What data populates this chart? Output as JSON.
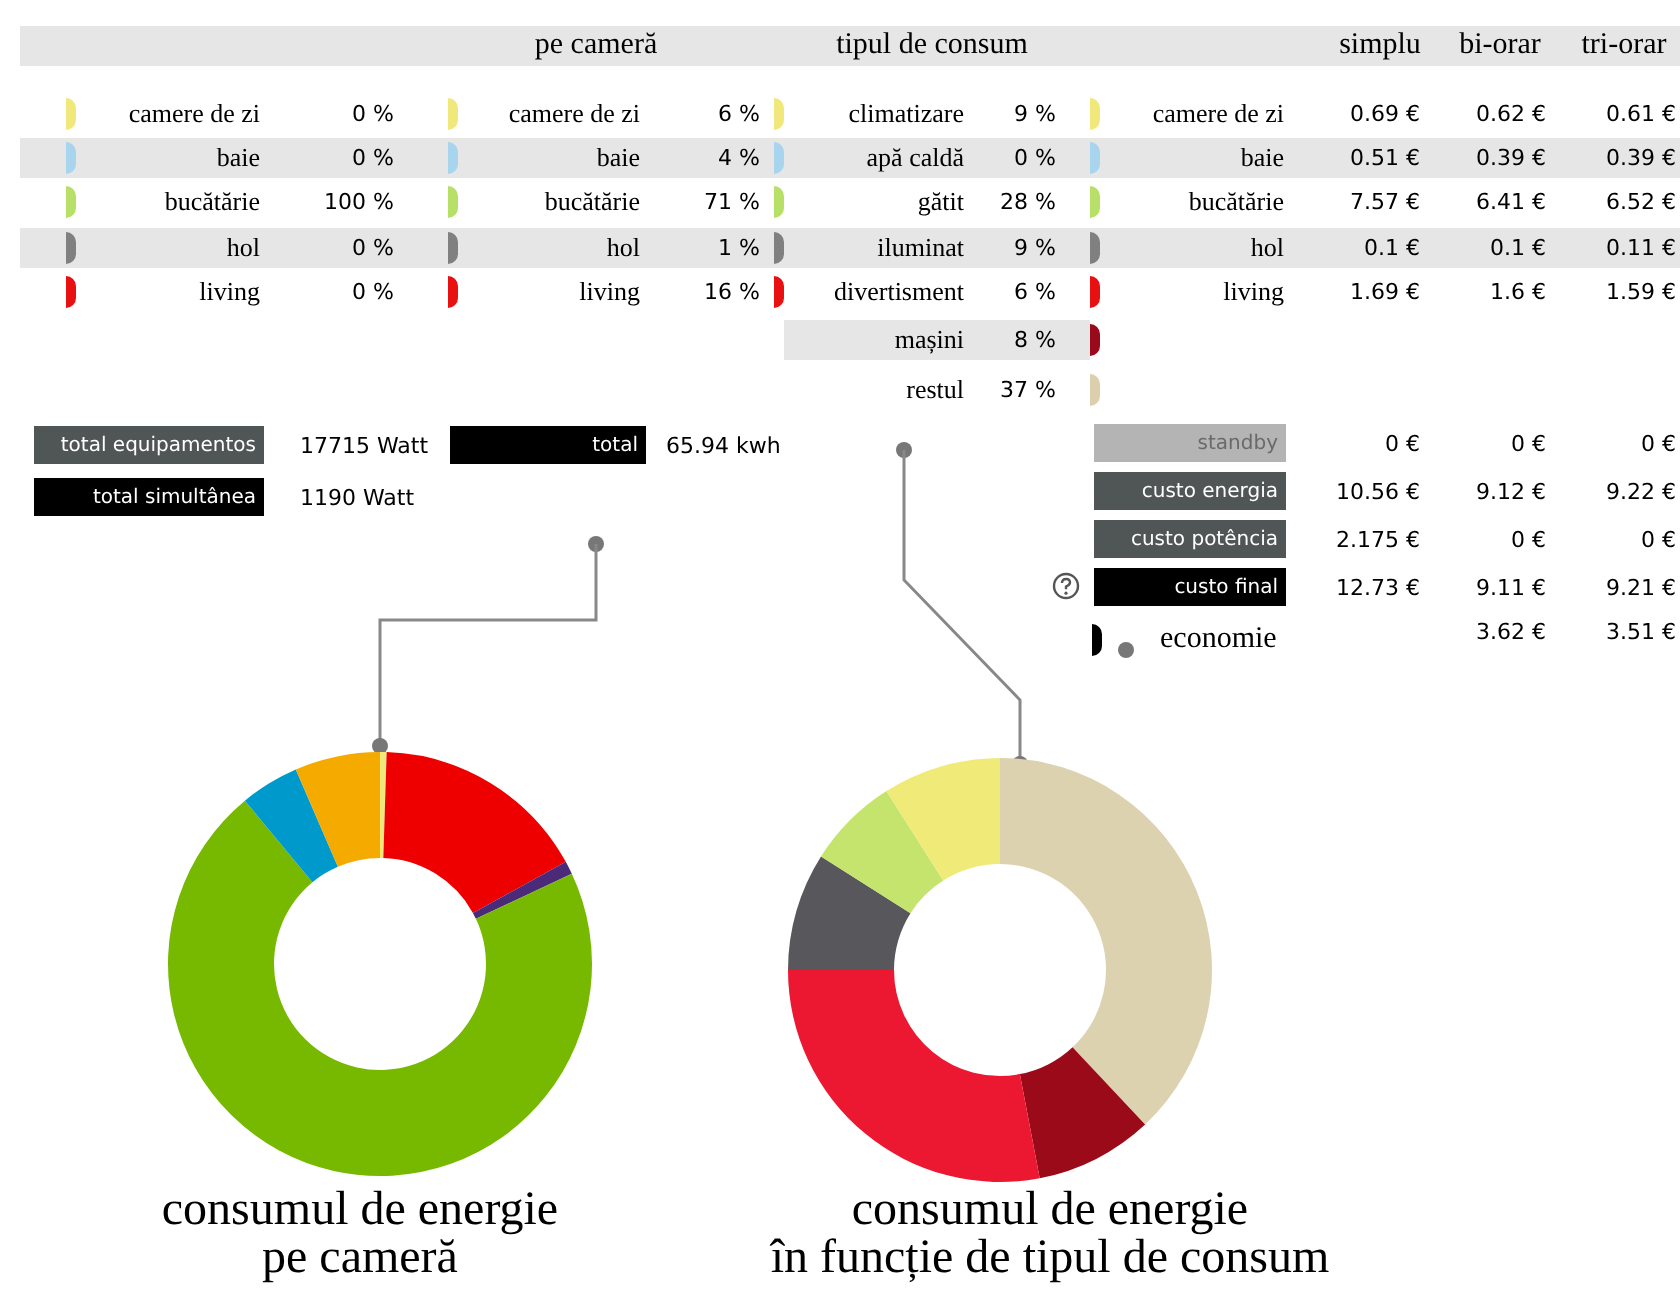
{
  "chart_data": [
    {
      "type": "other",
      "annotations": [
        "pe cameră",
        "tipul de consum",
        "simplu",
        "bi-orar",
        "tri-orar",
        "camere de zi",
        "0 %",
        "baie",
        "0 %",
        "bucătărie",
        "100 %",
        "hol",
        "0 %",
        "living",
        "0 %",
        "camere de zi",
        "6 %",
        "baie",
        "4 %",
        "bucătărie",
        "71 %",
        "hol",
        "1 %",
        "living",
        "16 %",
        "climatizare",
        "9 %",
        "apă caldă",
        "0 %",
        "gătit",
        "28 %",
        "iluminat",
        "9 %",
        "divertisment",
        "6 %",
        "mașini",
        "8 %",
        "restul",
        "37 %",
        "camere de zi",
        "0.69 €",
        "0.62 €",
        "0.61 €",
        "baie",
        "0.51 €",
        "0.39 €",
        "0.39 €",
        "bucătărie",
        "7.57 €",
        "6.41 €",
        "6.52 €",
        "hol",
        "0.1 €",
        "0.1 €",
        "0.11 €",
        "living",
        "1.69 €",
        "1.6 €",
        "1.59 €",
        "total equipamentos",
        "17715 Watt",
        "total simultânea",
        "1190 Watt",
        "total",
        "65.94 kwh",
        "standby",
        "0 €",
        "0 €",
        "0 €",
        "custo energia",
        "10.56 €",
        "9.12 €",
        "9.22 €",
        "custo potência",
        "2.175 €",
        "0 €",
        "0 €",
        "custo final",
        "12.73 €",
        "9.11 €",
        "9.21 €",
        "economie",
        "3.62 €",
        "3.51 €"
      ]
    },
    {
      "type": "donut",
      "title": "consumul de energie\npe cameră",
      "categories": [
        null,
        null,
        null,
        null,
        null,
        null
      ],
      "values": [
        0.5,
        16.5,
        1,
        71,
        4.5,
        6.5
      ],
      "colors": [
        "#f0e878",
        "#ee0000",
        "#4b2a7a",
        "#76b900",
        "#0099cc",
        "#f5aa00"
      ]
    },
    {
      "type": "donut",
      "title": "consumul de energie\nîn funcție de tipul de consum",
      "categories": [
        null,
        null,
        null,
        null,
        null,
        null
      ],
      "values": [
        38,
        9,
        28,
        9,
        7,
        9
      ],
      "colors": [
        "#ddd2b0",
        "#9b0a18",
        "#ec1832",
        "#58575c",
        "#c5e46e",
        "#f0eb78"
      ]
    }
  ]
}
